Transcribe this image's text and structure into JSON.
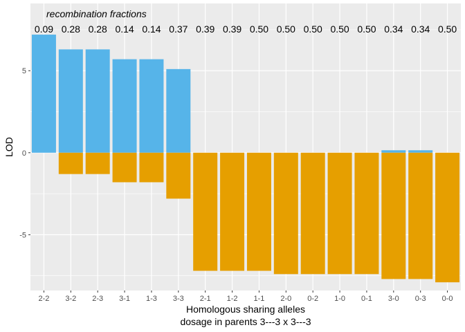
{
  "chart_data": {
    "type": "bar",
    "title": "",
    "annotation_title": "recombination fractions",
    "xlabel": "Homologous sharing alleles",
    "xlabel_line2": "dosage in parents  3---3  x  3---3",
    "ylabel": "LOD",
    "categories": [
      "2-2",
      "3-2",
      "2-3",
      "3-1",
      "1-3",
      "3-3",
      "2-1",
      "1-2",
      "1-1",
      "2-0",
      "0-2",
      "1-0",
      "0-1",
      "3-0",
      "0-3",
      "0-0"
    ],
    "recombination_fractions": [
      "0.09",
      "0.28",
      "0.28",
      "0.14",
      "0.14",
      "0.37",
      "0.39",
      "0.39",
      "0.50",
      "0.50",
      "0.50",
      "0.50",
      "0.50",
      "0.34",
      "0.34",
      "0.50"
    ],
    "series": [
      {
        "color": "#56B4E9",
        "values": [
          7.2,
          6.3,
          6.3,
          5.7,
          5.7,
          5.1,
          0,
          0,
          0,
          0,
          0,
          0,
          0,
          0.15,
          0.15,
          0
        ]
      },
      {
        "color": "#E69F00",
        "values": [
          0,
          -1.3,
          -1.3,
          -1.8,
          -1.8,
          -2.8,
          -7.2,
          -7.2,
          -7.2,
          -7.4,
          -7.4,
          -7.4,
          -7.4,
          -7.7,
          -7.7,
          -7.9
        ]
      }
    ],
    "yticks": [
      -5,
      0,
      5
    ],
    "ylim": [
      -8.4,
      9.1
    ],
    "grid": true,
    "panel_background": "#EBEBEB",
    "grid_color": "#FFFFFF"
  }
}
